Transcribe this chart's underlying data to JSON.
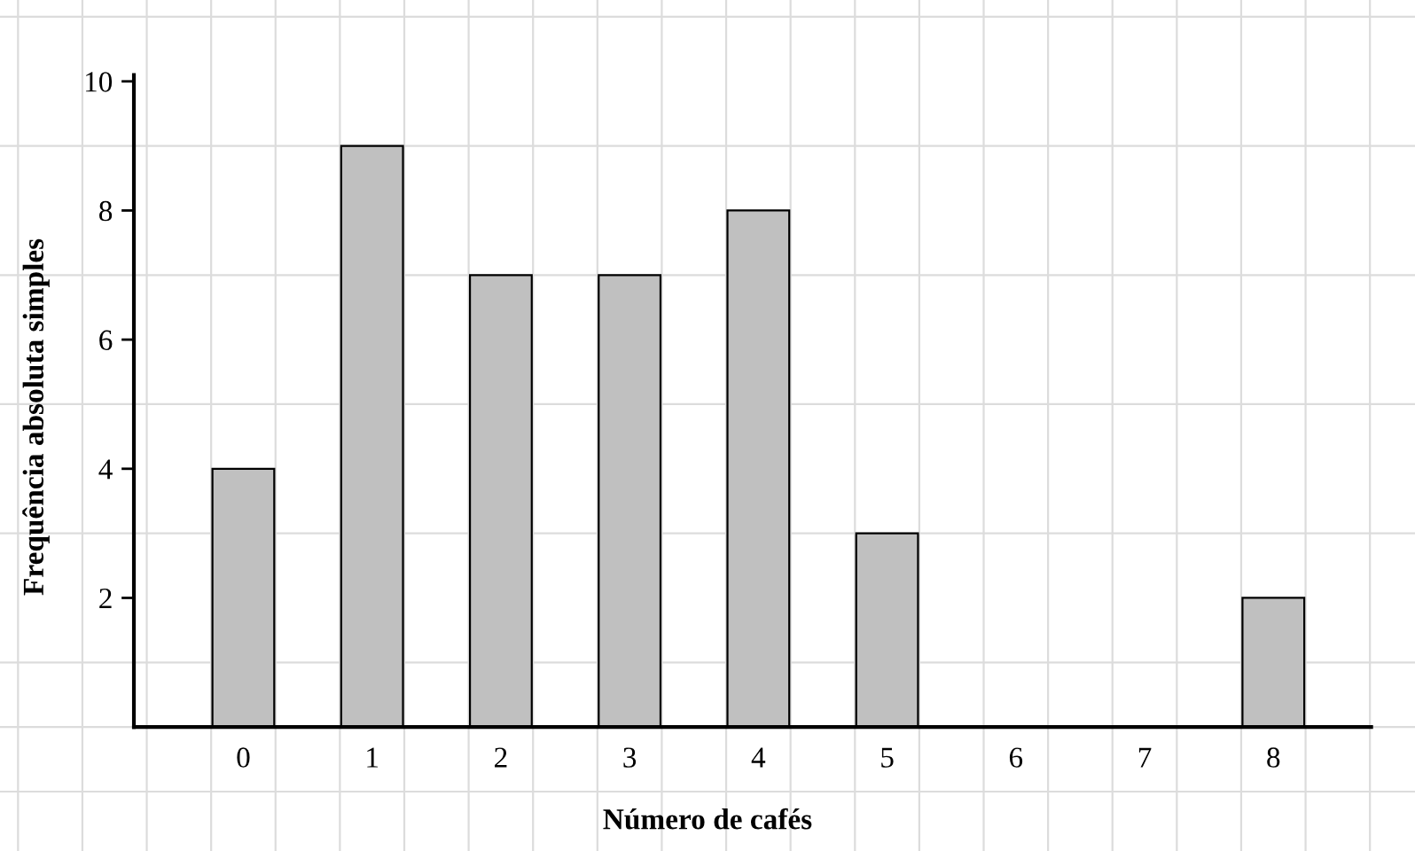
{
  "chart_data": {
    "type": "bar",
    "xlabel": "Número de cafés",
    "ylabel": "Frequência absoluta simples",
    "categories": [
      "0",
      "1",
      "2",
      "3",
      "4",
      "5",
      "6",
      "7",
      "8"
    ],
    "values": [
      4,
      9,
      7,
      7,
      8,
      3,
      0,
      0,
      2
    ],
    "color": "#c0c0c0",
    "ylim": [
      -1.92,
      11.26
    ],
    "yticks": [
      2,
      4,
      6,
      8,
      10
    ],
    "grid": true
  }
}
